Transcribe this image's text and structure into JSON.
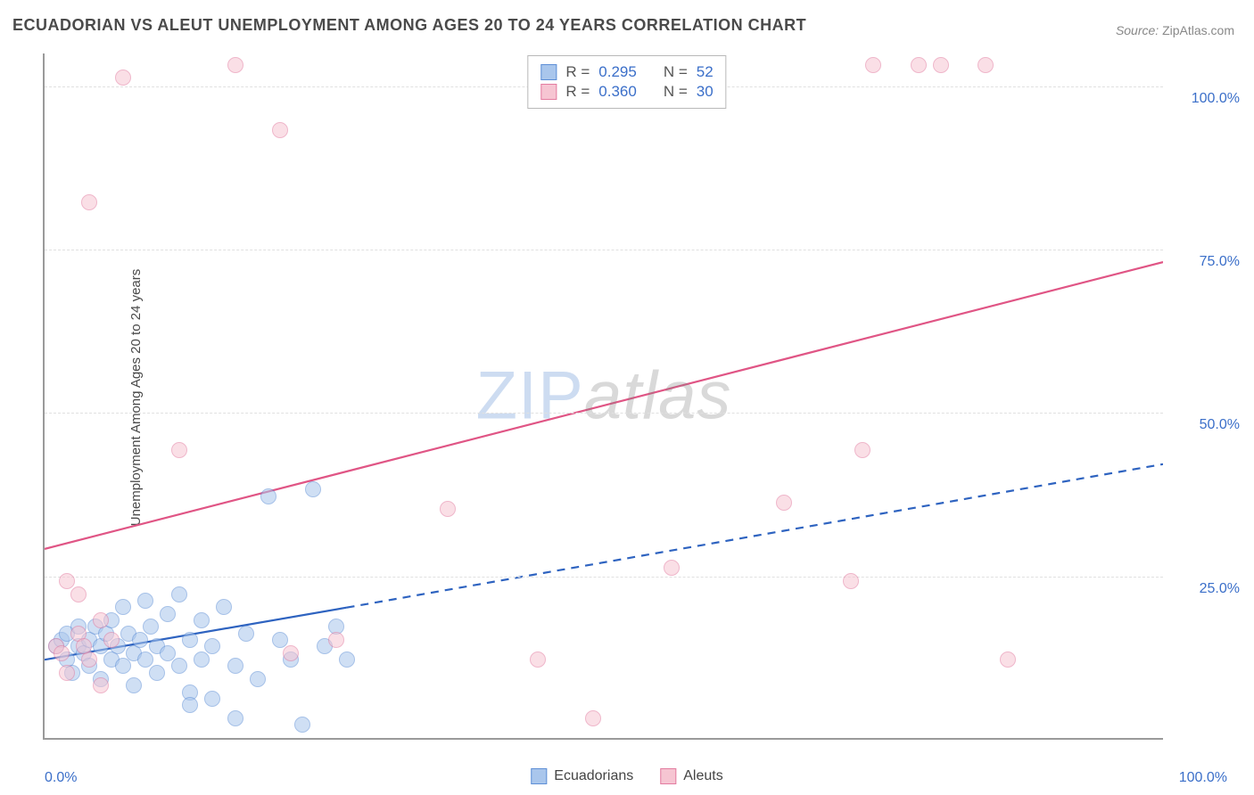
{
  "title": "ECUADORIAN VS ALEUT UNEMPLOYMENT AMONG AGES 20 TO 24 YEARS CORRELATION CHART",
  "source_label": "Source:",
  "source_value": "ZipAtlas.com",
  "yaxis_label": "Unemployment Among Ages 20 to 24 years",
  "watermark": {
    "part1": "ZIP",
    "part2": "atlas"
  },
  "chart": {
    "type": "scatter",
    "xlim": [
      0,
      100
    ],
    "ylim": [
      0,
      105
    ],
    "background_color": "#ffffff",
    "grid_color": "#e0e0e0",
    "axis_color": "#9a9a9a",
    "tick_color": "#3b6fc9",
    "tick_fontsize": 16,
    "ygrid_values": [
      25,
      50,
      75,
      100
    ],
    "ytick_labels": [
      "25.0%",
      "50.0%",
      "75.0%",
      "100.0%"
    ],
    "xtick_labels": {
      "min": "0.0%",
      "max": "100.0%"
    },
    "marker_radius": 9,
    "marker_opacity": 0.55,
    "series": [
      {
        "name": "Ecuadorians",
        "color_fill": "#a9c6ec",
        "color_stroke": "#5e8fd6",
        "R": "0.295",
        "N": "52",
        "trend": {
          "x1": 0,
          "y1": 12,
          "x2_solid": 27,
          "y2_solid": 20,
          "x2_dash": 100,
          "y2_dash": 42,
          "stroke": "#2e63c0",
          "width": 2.2
        },
        "points": [
          [
            1,
            14
          ],
          [
            1.5,
            15
          ],
          [
            2,
            12
          ],
          [
            2,
            16
          ],
          [
            2.5,
            10
          ],
          [
            3,
            14
          ],
          [
            3,
            17
          ],
          [
            3.5,
            13
          ],
          [
            4,
            15
          ],
          [
            4,
            11
          ],
          [
            4.5,
            17
          ],
          [
            5,
            14
          ],
          [
            5,
            9
          ],
          [
            5.5,
            16
          ],
          [
            6,
            12
          ],
          [
            6,
            18
          ],
          [
            6.5,
            14
          ],
          [
            7,
            11
          ],
          [
            7,
            20
          ],
          [
            7.5,
            16
          ],
          [
            8,
            13
          ],
          [
            8,
            8
          ],
          [
            8.5,
            15
          ],
          [
            9,
            21
          ],
          [
            9,
            12
          ],
          [
            9.5,
            17
          ],
          [
            10,
            14
          ],
          [
            10,
            10
          ],
          [
            11,
            19
          ],
          [
            11,
            13
          ],
          [
            12,
            11
          ],
          [
            12,
            22
          ],
          [
            13,
            15
          ],
          [
            13,
            7
          ],
          [
            14,
            18
          ],
          [
            14,
            12
          ],
          [
            15,
            6
          ],
          [
            15,
            14
          ],
          [
            16,
            20
          ],
          [
            17,
            11
          ],
          [
            18,
            16
          ],
          [
            19,
            9
          ],
          [
            20,
            37
          ],
          [
            21,
            15
          ],
          [
            22,
            12
          ],
          [
            23,
            2
          ],
          [
            24,
            38
          ],
          [
            25,
            14
          ],
          [
            26,
            17
          ],
          [
            27,
            12
          ],
          [
            17,
            3
          ],
          [
            13,
            5
          ]
        ]
      },
      {
        "name": "Aleuts",
        "color_fill": "#f6c5d2",
        "color_stroke": "#e37ca0",
        "R": "0.360",
        "N": "30",
        "trend": {
          "x1": 0,
          "y1": 29,
          "x2_solid": 100,
          "y2_solid": 73,
          "stroke": "#e05585",
          "width": 2.2
        },
        "points": [
          [
            1,
            14
          ],
          [
            2,
            10
          ],
          [
            2,
            24
          ],
          [
            3,
            16
          ],
          [
            3,
            22
          ],
          [
            4,
            12
          ],
          [
            5,
            18
          ],
          [
            5,
            8
          ],
          [
            7,
            101
          ],
          [
            4,
            82
          ],
          [
            12,
            44
          ],
          [
            17,
            103
          ],
          [
            21,
            93
          ],
          [
            22,
            13
          ],
          [
            26,
            15
          ],
          [
            36,
            35
          ],
          [
            44,
            12
          ],
          [
            49,
            3
          ],
          [
            56,
            26
          ],
          [
            66,
            36
          ],
          [
            72,
            24
          ],
          [
            73,
            44
          ],
          [
            74,
            103
          ],
          [
            78,
            103
          ],
          [
            80,
            103
          ],
          [
            84,
            103
          ],
          [
            86,
            12
          ],
          [
            1.5,
            13
          ],
          [
            3.5,
            14
          ],
          [
            6,
            15
          ]
        ]
      }
    ]
  },
  "legend_top": {
    "r_label": "R =",
    "n_label": "N ="
  },
  "legend_bottom": [
    {
      "label": "Ecuadorians",
      "fill": "#a9c6ec",
      "stroke": "#5e8fd6"
    },
    {
      "label": "Aleuts",
      "fill": "#f6c5d2",
      "stroke": "#e37ca0"
    }
  ]
}
